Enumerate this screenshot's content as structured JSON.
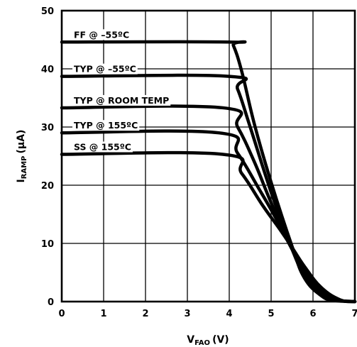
{
  "chart_data": {
    "type": "line",
    "title": "",
    "xlabel": "V",
    "xlabel_sub": "FAO",
    "xlabel_unit": "(V)",
    "ylabel": "I",
    "ylabel_sub": "RAMP",
    "ylabel_unit": "(µA)",
    "xlim": [
      0,
      7
    ],
    "ylim": [
      0,
      50
    ],
    "x_ticks": [
      "0",
      "1",
      "2",
      "3",
      "4",
      "5",
      "6",
      "7"
    ],
    "y_ticks": [
      "0",
      "10",
      "20",
      "30",
      "40",
      "50"
    ],
    "grid": true,
    "series": [
      {
        "name": "FF @ –55ºC",
        "points": [
          [
            0,
            44.6
          ],
          [
            4.0,
            44.6
          ],
          [
            4.1,
            44.0
          ],
          [
            4.3,
            39.5
          ],
          [
            4.6,
            30.5
          ],
          [
            5.0,
            20.5
          ],
          [
            5.5,
            9.5
          ],
          [
            5.8,
            4.0
          ],
          [
            6.2,
            1.0
          ],
          [
            6.5,
            0.2
          ],
          [
            7.0,
            0
          ]
        ]
      },
      {
        "name": "TYP @ –55ºC",
        "points": [
          [
            0,
            38.7
          ],
          [
            4.0,
            38.7
          ],
          [
            4.2,
            36.5
          ],
          [
            4.5,
            30.0
          ],
          [
            5.0,
            18.8
          ],
          [
            5.5,
            9.0
          ],
          [
            5.8,
            4.5
          ],
          [
            6.2,
            1.3
          ],
          [
            6.5,
            0.3
          ],
          [
            7.0,
            0
          ]
        ]
      },
      {
        "name": "TYP @ ROOM TEMP",
        "points": [
          [
            0,
            33.3
          ],
          [
            3.85,
            33.3
          ],
          [
            4.2,
            30.0
          ],
          [
            4.6,
            24.0
          ],
          [
            5.0,
            17.0
          ],
          [
            5.5,
            9.0
          ],
          [
            5.8,
            5.0
          ],
          [
            6.2,
            1.6
          ],
          [
            6.55,
            0.3
          ],
          [
            7.0,
            0
          ]
        ]
      },
      {
        "name": "TYP @ 155ºC",
        "points": [
          [
            0,
            29.0
          ],
          [
            3.75,
            29.0
          ],
          [
            4.2,
            25.5
          ],
          [
            4.7,
            19.5
          ],
          [
            5.1,
            14.5
          ],
          [
            5.5,
            9.0
          ],
          [
            5.8,
            5.4
          ],
          [
            6.2,
            2.0
          ],
          [
            6.6,
            0.3
          ],
          [
            7.0,
            0
          ]
        ]
      },
      {
        "name": "SS @ 155ºC",
        "points": [
          [
            0,
            25.3
          ],
          [
            3.85,
            25.3
          ],
          [
            4.3,
            22.0
          ],
          [
            4.8,
            16.5
          ],
          [
            5.2,
            12.5
          ],
          [
            5.5,
            9.3
          ],
          [
            5.8,
            6.0
          ],
          [
            6.2,
            2.4
          ],
          [
            6.65,
            0.3
          ],
          [
            7.0,
            0
          ]
        ]
      }
    ],
    "annotations": [
      {
        "text": "FF @ –55ºC",
        "series": 0
      },
      {
        "text": "TYP @ –55ºC",
        "series": 1
      },
      {
        "text": "TYP @ ROOM TEMP",
        "series": 2
      },
      {
        "text": "TYP @ 155ºC",
        "series": 3
      },
      {
        "text": "SS @ 155ºC",
        "series": 4
      }
    ]
  }
}
